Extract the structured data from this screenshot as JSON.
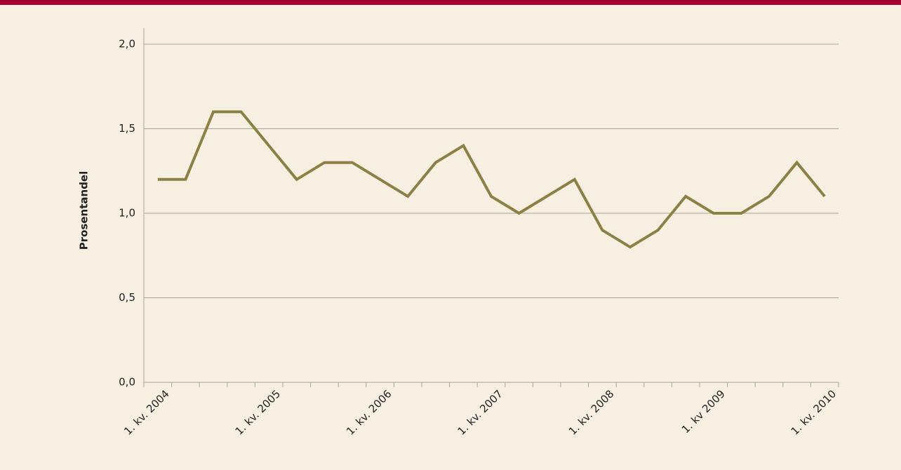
{
  "chart_data": {
    "type": "line",
    "y_label": "Prosentandel",
    "categories": [
      "1. kv. 2004",
      null,
      null,
      null,
      "1. kv. 2005",
      null,
      null,
      null,
      "1. kv. 2006",
      null,
      null,
      null,
      "1. kv. 2007",
      null,
      null,
      null,
      "1. kv. 2008",
      null,
      null,
      null,
      "1. kv 2009",
      null,
      null,
      null,
      "1. kv. 2010"
    ],
    "series": [
      {
        "color": "#8b8145",
        "values": [
          1.2,
          1.2,
          1.6,
          1.6,
          1.4,
          1.2,
          1.3,
          1.3,
          1.2,
          1.1,
          1.3,
          1.4,
          1.1,
          1.0,
          1.1,
          1.2,
          0.9,
          0.8,
          0.9,
          1.1,
          1.0,
          1.0,
          1.1,
          1.3,
          1.1
        ]
      }
    ],
    "ylim": [
      0,
      2
    ],
    "yticks": [
      {
        "value": 0,
        "label": "0,0"
      },
      {
        "value": 0.5,
        "label": "0,5"
      },
      {
        "value": 1,
        "label": "1,0"
      },
      {
        "value": 1.5,
        "label": "1,5"
      },
      {
        "value": 2,
        "label": "2,0"
      }
    ],
    "grid": true
  }
}
